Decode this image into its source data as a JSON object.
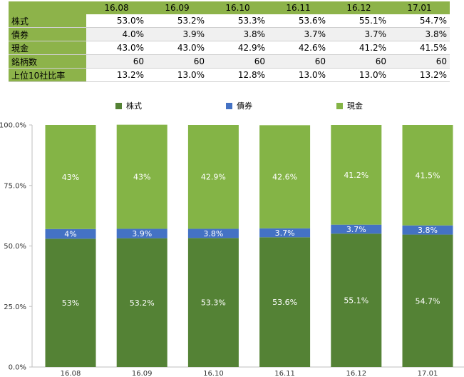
{
  "table": {
    "columns": [
      "16.08",
      "16.09",
      "16.10",
      "16.11",
      "16.12",
      "17.01"
    ],
    "rows": [
      {
        "label": "株式",
        "values": [
          "53.0%",
          "53.2%",
          "53.3%",
          "53.6%",
          "55.1%",
          "54.7%"
        ]
      },
      {
        "label": "債券",
        "values": [
          "4.0%",
          "3.9%",
          "3.8%",
          "3.7%",
          "3.7%",
          "3.8%"
        ]
      },
      {
        "label": "現金",
        "values": [
          "43.0%",
          "43.0%",
          "42.9%",
          "42.6%",
          "41.2%",
          "41.5%"
        ]
      },
      {
        "label": "銘柄数",
        "values": [
          "60",
          "60",
          "60",
          "60",
          "60",
          "60"
        ]
      },
      {
        "label": "上位10社比率",
        "values": [
          "13.2%",
          "13.0%",
          "12.8%",
          "13.0%",
          "13.0%",
          "13.2%"
        ]
      }
    ]
  },
  "chart_data": {
    "type": "bar",
    "stacked": true,
    "categories": [
      "16.08",
      "16.09",
      "16.10",
      "16.11",
      "16.12",
      "17.01"
    ],
    "series": [
      {
        "name": "株式",
        "color": "#548235",
        "values": [
          53,
          53.2,
          53.3,
          53.6,
          55.1,
          54.7
        ],
        "labels": [
          "53%",
          "53.2%",
          "53.3%",
          "53.6%",
          "55.1%",
          "54.7%"
        ]
      },
      {
        "name": "債券",
        "color": "#4472c4",
        "values": [
          4,
          3.9,
          3.8,
          3.7,
          3.7,
          3.8
        ],
        "labels": [
          "4%",
          "3.9%",
          "3.8%",
          "3.7%",
          "3.7%",
          "3.8%"
        ]
      },
      {
        "name": "現金",
        "color": "#84b446",
        "values": [
          43,
          43,
          42.9,
          42.6,
          41.2,
          41.5
        ],
        "labels": [
          "43%",
          "43%",
          "42.9%",
          "42.6%",
          "41.2%",
          "41.5%"
        ]
      }
    ],
    "ylim": [
      0,
      100
    ],
    "yticks": [
      0,
      25,
      50,
      75,
      100
    ],
    "ytick_labels": [
      "0.0%",
      "25.0%",
      "50.0%",
      "75.0%",
      "100.0%"
    ],
    "legend_position": "top",
    "grid": false,
    "title": "",
    "xlabel": "",
    "ylabel": ""
  },
  "colors": {
    "header_green": "#8db34a",
    "stock": "#548235",
    "bond": "#4472c4",
    "cash": "#84b446"
  }
}
